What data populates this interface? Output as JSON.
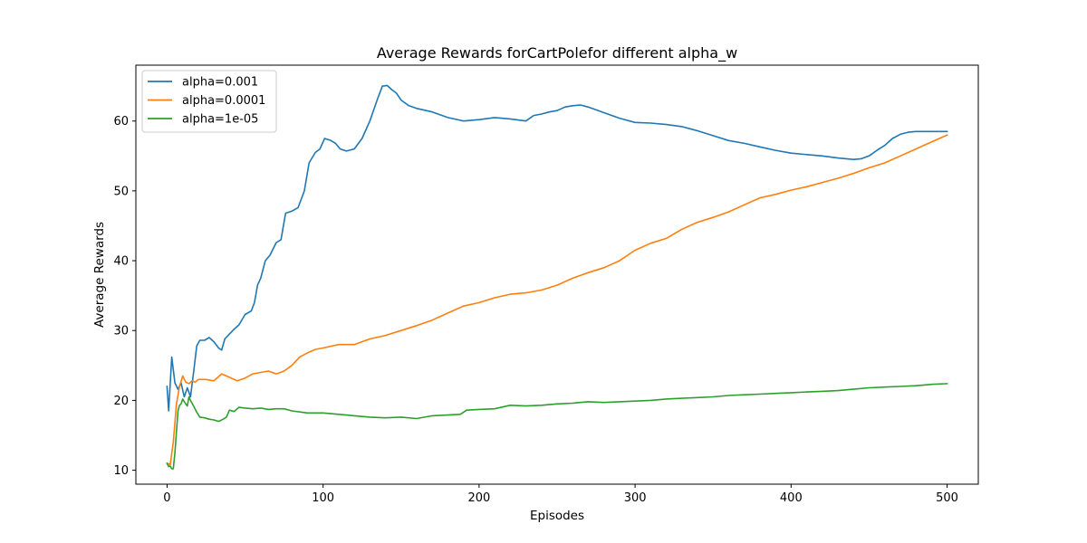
{
  "chart_data": {
    "type": "line",
    "title": "Average Rewards forCartPolefor different alpha_w",
    "xlabel": "Episodes",
    "ylabel": "Average Rewards",
    "xlim": [
      -20,
      520
    ],
    "ylim": [
      8,
      68
    ],
    "xticks": [
      0,
      100,
      200,
      300,
      400,
      500
    ],
    "yticks": [
      10,
      20,
      30,
      40,
      50,
      60
    ],
    "grid": false,
    "legend_position": "upper-left",
    "series": [
      {
        "name": "alpha=0.001",
        "color": "#1f77b4",
        "x": [
          0,
          1,
          3,
          5,
          7,
          9,
          11,
          13,
          15,
          17,
          19,
          21,
          24,
          27,
          30,
          33,
          35,
          37,
          40,
          43,
          46,
          50,
          54,
          56,
          58,
          60,
          63,
          66,
          70,
          73,
          76,
          80,
          84,
          88,
          91,
          95,
          98,
          101,
          105,
          108,
          111,
          115,
          120,
          125,
          130,
          135,
          138,
          141,
          144,
          147,
          150,
          155,
          160,
          170,
          180,
          190,
          200,
          210,
          220,
          230,
          235,
          240,
          245,
          250,
          255,
          260,
          265,
          270,
          275,
          280,
          290,
          300,
          310,
          320,
          330,
          340,
          350,
          360,
          370,
          380,
          390,
          400,
          410,
          420,
          430,
          440,
          445,
          450,
          455,
          460,
          465,
          470,
          475,
          480,
          490,
          500
        ],
        "y": [
          22.0,
          18.5,
          26.2,
          22.5,
          21.6,
          22.5,
          20.5,
          21.8,
          20.5,
          24.0,
          27.8,
          28.6,
          28.6,
          29.0,
          28.4,
          27.5,
          27.2,
          28.8,
          29.5,
          30.2,
          30.8,
          32.3,
          32.8,
          34.0,
          36.5,
          37.5,
          40.0,
          40.8,
          42.6,
          43.0,
          46.8,
          47.1,
          47.6,
          50.0,
          54.0,
          55.5,
          56.0,
          57.5,
          57.2,
          56.8,
          56.0,
          55.7,
          56.0,
          57.5,
          60.0,
          63.2,
          65.0,
          65.1,
          64.5,
          64.0,
          63.0,
          62.2,
          61.8,
          61.3,
          60.5,
          60.0,
          60.2,
          60.5,
          60.3,
          60.0,
          60.8,
          61.0,
          61.3,
          61.5,
          62.0,
          62.2,
          62.3,
          62.0,
          61.6,
          61.2,
          60.4,
          59.8,
          59.7,
          59.5,
          59.2,
          58.6,
          57.9,
          57.2,
          56.8,
          56.3,
          55.8,
          55.4,
          55.2,
          55.0,
          54.7,
          54.5,
          54.6,
          55.0,
          55.8,
          56.5,
          57.5,
          58.1,
          58.4,
          58.5,
          58.5,
          58.5
        ]
      },
      {
        "name": "alpha=0.0001",
        "color": "#ff7f0e",
        "x": [
          0,
          2,
          4,
          6,
          8,
          10,
          12,
          14,
          16,
          18,
          20,
          25,
          30,
          35,
          40,
          45,
          50,
          55,
          60,
          65,
          70,
          75,
          80,
          85,
          90,
          95,
          100,
          110,
          120,
          130,
          140,
          150,
          160,
          170,
          180,
          190,
          200,
          210,
          220,
          230,
          240,
          250,
          260,
          270,
          280,
          290,
          300,
          310,
          320,
          330,
          340,
          350,
          360,
          370,
          380,
          390,
          400,
          410,
          420,
          430,
          440,
          450,
          460,
          470,
          480,
          490,
          500
        ],
        "y": [
          11.0,
          10.8,
          14.0,
          19.5,
          22.0,
          23.5,
          22.6,
          22.4,
          22.8,
          22.6,
          23.0,
          23.0,
          22.8,
          23.8,
          23.3,
          22.8,
          23.2,
          23.8,
          24.0,
          24.2,
          23.8,
          24.2,
          25.0,
          26.2,
          26.8,
          27.3,
          27.5,
          28.0,
          28.0,
          28.8,
          29.3,
          30.0,
          30.7,
          31.5,
          32.5,
          33.5,
          34.0,
          34.7,
          35.2,
          35.4,
          35.8,
          36.5,
          37.5,
          38.3,
          39.0,
          40.0,
          41.5,
          42.5,
          43.2,
          44.5,
          45.5,
          46.2,
          47.0,
          48.0,
          49.0,
          49.5,
          50.1,
          50.6,
          51.2,
          51.8,
          52.5,
          53.3,
          54.0,
          55.0,
          56.0,
          57.0,
          58.0
        ]
      },
      {
        "name": "alpha=1e-05",
        "color": "#2ca02c",
        "x": [
          0,
          1,
          2,
          3,
          4,
          5,
          6,
          7,
          8,
          9,
          10,
          11,
          12,
          13,
          14,
          15,
          17,
          19,
          21,
          24,
          27,
          30,
          33,
          36,
          38,
          40,
          43,
          46,
          50,
          55,
          60,
          65,
          70,
          75,
          80,
          90,
          100,
          110,
          120,
          130,
          140,
          150,
          160,
          170,
          180,
          188,
          192,
          200,
          210,
          220,
          230,
          240,
          250,
          260,
          270,
          280,
          290,
          300,
          310,
          320,
          330,
          340,
          350,
          360,
          370,
          380,
          390,
          400,
          410,
          420,
          430,
          440,
          450,
          460,
          470,
          480,
          490,
          500
        ],
        "y": [
          11.0,
          10.5,
          10.6,
          10.2,
          10.2,
          12.5,
          15.5,
          18.5,
          19.3,
          19.5,
          20.2,
          19.8,
          19.5,
          19.2,
          20.5,
          20.0,
          19.2,
          18.3,
          17.6,
          17.5,
          17.3,
          17.2,
          17.0,
          17.3,
          17.6,
          18.6,
          18.4,
          19.0,
          18.9,
          18.8,
          18.9,
          18.7,
          18.8,
          18.8,
          18.5,
          18.2,
          18.2,
          18.0,
          17.8,
          17.6,
          17.5,
          17.6,
          17.4,
          17.8,
          17.9,
          18.0,
          18.6,
          18.7,
          18.8,
          19.3,
          19.2,
          19.3,
          19.5,
          19.6,
          19.8,
          19.7,
          19.8,
          19.9,
          20.0,
          20.2,
          20.3,
          20.4,
          20.5,
          20.7,
          20.8,
          20.9,
          21.0,
          21.1,
          21.2,
          21.3,
          21.4,
          21.6,
          21.8,
          21.9,
          22.0,
          22.1,
          22.3,
          22.4
        ]
      }
    ]
  }
}
